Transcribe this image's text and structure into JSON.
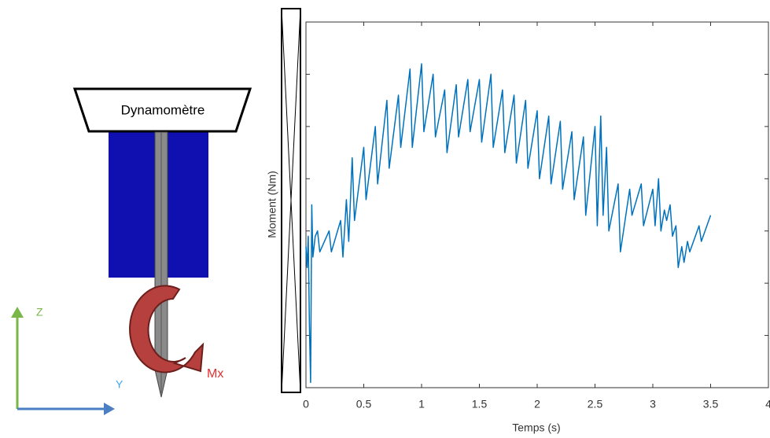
{
  "diagram_labels": {
    "device": "Dynamomètre",
    "z_axis": "Z",
    "y_axis": "Y",
    "moment": "Mx"
  },
  "chart_data": {
    "type": "line",
    "x_label": "Temps (s)",
    "y_label": "Moment (Nm)",
    "color": "#0072bd",
    "x": [
      0,
      0.01,
      0.02,
      0.03,
      0.04,
      0.05,
      0.06,
      0.08,
      0.1,
      0.12,
      0.2,
      0.22,
      0.3,
      0.32,
      0.35,
      0.37,
      0.4,
      0.42,
      0.5,
      0.52,
      0.6,
      0.62,
      0.7,
      0.72,
      0.8,
      0.82,
      0.9,
      0.92,
      1.0,
      1.02,
      1.1,
      1.12,
      1.2,
      1.22,
      1.3,
      1.32,
      1.4,
      1.42,
      1.5,
      1.52,
      1.6,
      1.62,
      1.7,
      1.72,
      1.8,
      1.82,
      1.9,
      1.92,
      2.0,
      2.02,
      2.1,
      2.12,
      2.2,
      2.22,
      2.3,
      2.32,
      2.4,
      2.42,
      2.5,
      2.52,
      2.55,
      2.57,
      2.6,
      2.62,
      2.7,
      2.72,
      2.8,
      2.82,
      2.9,
      2.92,
      3.0,
      3.02,
      3.05,
      3.07,
      3.1,
      3.12,
      3.15,
      3.17,
      3.2,
      3.22,
      3.25,
      3.27,
      3.3,
      3.32,
      3.4,
      3.42,
      3.5
    ],
    "values": [
      2.7,
      2.3,
      2.9,
      1.2,
      0.1,
      3.5,
      2.5,
      2.9,
      3.0,
      2.6,
      3.0,
      2.6,
      3.2,
      2.5,
      3.6,
      2.8,
      4.4,
      3.2,
      4.6,
      3.6,
      5.0,
      3.9,
      5.5,
      4.2,
      5.6,
      4.6,
      6.1,
      4.6,
      6.2,
      4.9,
      6.0,
      4.8,
      5.7,
      4.5,
      5.8,
      4.8,
      5.9,
      4.9,
      5.9,
      4.7,
      6.0,
      4.6,
      5.7,
      4.5,
      5.6,
      4.3,
      5.5,
      4.2,
      5.3,
      4.0,
      5.2,
      3.9,
      5.1,
      3.8,
      4.9,
      3.6,
      4.8,
      3.3,
      5.0,
      3.1,
      5.2,
      3.3,
      4.6,
      3.0,
      3.9,
      2.6,
      3.8,
      3.3,
      3.9,
      3.1,
      3.8,
      3.1,
      4.0,
      3.0,
      3.4,
      3.2,
      3.5,
      2.9,
      3.1,
      2.3,
      2.7,
      2.4,
      2.8,
      2.6,
      3.1,
      2.8,
      3.3
    ],
    "xlim": [
      0,
      4
    ],
    "xticks": [
      0,
      0.5,
      1,
      1.5,
      2,
      2.5,
      3,
      3.5,
      4
    ],
    "ylim": [
      0,
      7
    ],
    "yticks": [
      1,
      2,
      3,
      4,
      5,
      6
    ]
  }
}
